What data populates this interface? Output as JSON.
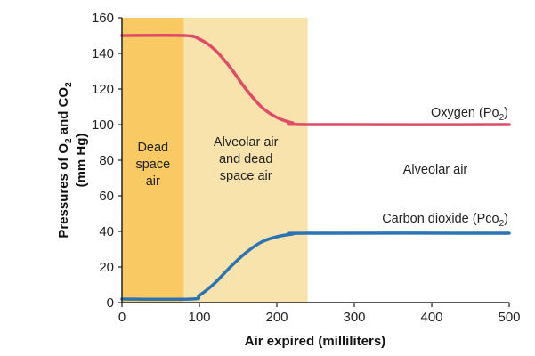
{
  "chart_data": {
    "type": "line",
    "xlabel": "Air expired (milliliters)",
    "ylabel_lines": [
      "Pressures of O2 and CO2",
      "(mm Hg)"
    ],
    "xlim": [
      0,
      500
    ],
    "ylim": [
      0,
      160
    ],
    "xticks": [
      0,
      100,
      200,
      300,
      400,
      500
    ],
    "yticks": [
      0,
      20,
      40,
      60,
      80,
      100,
      120,
      140,
      160
    ],
    "grid": false,
    "regions": [
      {
        "label_lines": [
          "Dead",
          "space",
          "air"
        ],
        "x_range": [
          0,
          80
        ],
        "color": "#f9c963"
      },
      {
        "label_lines": [
          "Alveolar air",
          "and dead",
          "space air"
        ],
        "x_range": [
          80,
          240
        ],
        "color": "#f9e3ac"
      },
      {
        "label_lines": [
          "Alveolar air"
        ],
        "x_range": [
          240,
          500
        ],
        "color": "#ffffff"
      }
    ],
    "series": [
      {
        "name": "Oxygen (Po2)",
        "color": "#e14b68",
        "x": [
          0,
          80,
          100,
          120,
          140,
          160,
          180,
          200,
          220,
          240,
          500
        ],
        "y": [
          150,
          150,
          148,
          142,
          132,
          120,
          110,
          104,
          101,
          100,
          100
        ]
      },
      {
        "name": "Carbon dioxide (Pco2)",
        "color": "#2a74b6",
        "x": [
          0,
          90,
          100,
          120,
          140,
          160,
          180,
          200,
          220,
          240,
          500
        ],
        "y": [
          2,
          2,
          4,
          11,
          20,
          28,
          34,
          37,
          38.5,
          39,
          39
        ]
      }
    ]
  }
}
